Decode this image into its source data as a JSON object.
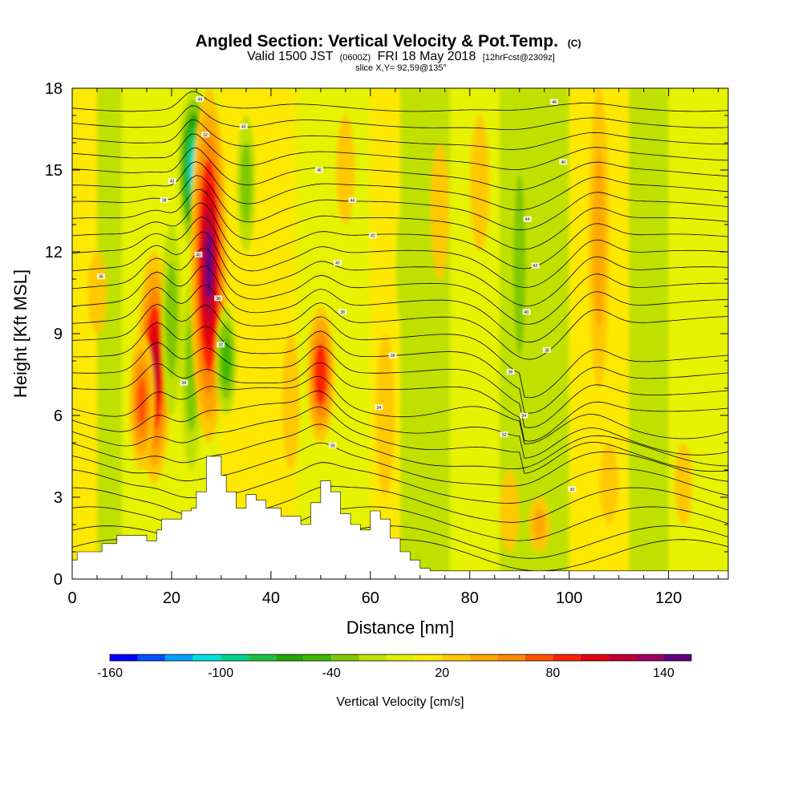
{
  "chart_data": {
    "type": "heatmap",
    "title": "Angled Section: Vertical Velocity & Pot.Temp.",
    "title_unit": "(C)",
    "subtitle": {
      "valid": "Valid 1500 JST",
      "utc": "(0600Z)",
      "date": "FRI 18 May 2018",
      "forecast": "[12hrFcst@2309z]"
    },
    "slice_label": "slice X,Y= 92,59@135°",
    "xlabel": "Distance [nm]",
    "ylabel": "Height [Kft MSL]",
    "xlim": [
      0,
      132
    ],
    "ylim": [
      0,
      18
    ],
    "x_ticks": [
      0,
      20,
      40,
      60,
      80,
      100,
      120
    ],
    "y_ticks": [
      0,
      3,
      6,
      9,
      12,
      15,
      18
    ],
    "grid": false,
    "colorbar": {
      "label": "Vertical Velocity [cm/s]",
      "tick_values": [
        -160,
        -100,
        -40,
        20,
        80,
        140
      ],
      "bins": [
        -160,
        -145,
        -130,
        -115,
        -100,
        -85,
        -70,
        -55,
        -40,
        -25,
        -10,
        5,
        20,
        35,
        50,
        65,
        80,
        95,
        110,
        125,
        140,
        155
      ],
      "colors": [
        "#0000ff",
        "#0050ff",
        "#00a0ff",
        "#00e0e0",
        "#00d090",
        "#20c040",
        "#20a800",
        "#40b800",
        "#80c800",
        "#c0e000",
        "#e0f000",
        "#ffe800",
        "#ffc800",
        "#ffa800",
        "#ff8800",
        "#ff5000",
        "#ff2000",
        "#e00010",
        "#c00030",
        "#a00060",
        "#600080"
      ]
    },
    "velocity_features": [
      {
        "x": 5,
        "zmin": 9,
        "zmax": 12,
        "value": 25
      },
      {
        "x": 16.5,
        "zmin": 3.5,
        "zmax": 12,
        "value": 120
      },
      {
        "x": 14,
        "zmin": 4,
        "zmax": 9,
        "value": 70
      },
      {
        "x": 20,
        "zmin": 6,
        "zmax": 13,
        "value": -40
      },
      {
        "x": 24.5,
        "zmin": 12,
        "zmax": 18,
        "value": -110
      },
      {
        "x": 24,
        "zmin": 4,
        "zmax": 11,
        "value": -40
      },
      {
        "x": 27.5,
        "zmin": 5,
        "zmax": 18,
        "value": 140
      },
      {
        "x": 31,
        "zmin": 6,
        "zmax": 10,
        "value": -45
      },
      {
        "x": 35,
        "zmin": 12,
        "zmax": 17,
        "value": -30
      },
      {
        "x": 44,
        "zmin": 4,
        "zmax": 9,
        "value": 20
      },
      {
        "x": 50,
        "zmin": 5,
        "zmax": 10,
        "value": 85
      },
      {
        "x": 55,
        "zmin": 13,
        "zmax": 17,
        "value": 25
      },
      {
        "x": 63,
        "zmin": 3,
        "zmax": 9,
        "value": 25
      },
      {
        "x": 67,
        "zmin": 9,
        "zmax": 14,
        "value": -25
      },
      {
        "x": 74,
        "zmin": 11,
        "zmax": 16,
        "value": 25
      },
      {
        "x": 82,
        "zmin": 12,
        "zmax": 17,
        "value": 30
      },
      {
        "x": 90,
        "zmin": 6,
        "zmax": 17,
        "value": -35
      },
      {
        "x": 88,
        "zmin": 1,
        "zmax": 4,
        "value": 30
      },
      {
        "x": 94,
        "zmin": 1,
        "zmax": 3,
        "value": 40
      },
      {
        "x": 106,
        "zmin": 7,
        "zmax": 18,
        "value": 40
      },
      {
        "x": 108,
        "zmin": 2,
        "zmax": 5,
        "value": 25
      },
      {
        "x": 123,
        "zmin": 2,
        "zmax": 5,
        "value": 20
      }
    ],
    "terrain": {
      "x": [
        0,
        1,
        6,
        9,
        13,
        15,
        17,
        18,
        20,
        22,
        24,
        25,
        27,
        28,
        30,
        31,
        33,
        35,
        37,
        39,
        42,
        46,
        48,
        50,
        52,
        54,
        56,
        58,
        60,
        62,
        64,
        66,
        68,
        70,
        72,
        132
      ],
      "z": [
        0.7,
        1.0,
        1.3,
        1.6,
        1.6,
        1.4,
        1.8,
        2.2,
        2.2,
        2.5,
        2.6,
        3.2,
        4.5,
        4.5,
        3.8,
        3.2,
        2.6,
        3.1,
        2.9,
        2.6,
        2.3,
        2.0,
        2.8,
        3.6,
        3.2,
        2.4,
        2.0,
        1.8,
        2.5,
        2.2,
        1.5,
        1.0,
        0.7,
        0.4,
        0.3,
        0.3
      ]
    },
    "theta_contours": {
      "base_levels": [
        0.9,
        1.4,
        2.1,
        2.8,
        3.5,
        4.1,
        4.7,
        5.3,
        5.9,
        6.5,
        7.1,
        7.7,
        8.3,
        8.9,
        9.5,
        10.1,
        10.7,
        11.3,
        11.9,
        12.5,
        13.1,
        13.7,
        14.3,
        14.9,
        15.5,
        16.1,
        16.7,
        17.3
      ]
    },
    "contour_labels": [
      {
        "x": 25.7,
        "z": 17.6,
        "text": "44"
      },
      {
        "x": 34.5,
        "z": 16.6,
        "text": "42"
      },
      {
        "x": 26.8,
        "z": 16.3,
        "text": "32"
      },
      {
        "x": 20.1,
        "z": 14.6,
        "text": "40"
      },
      {
        "x": 18.5,
        "z": 13.9,
        "text": "38"
      },
      {
        "x": 25.4,
        "z": 11.9,
        "text": "40"
      },
      {
        "x": 29.4,
        "z": 10.3,
        "text": "38"
      },
      {
        "x": 29.9,
        "z": 8.6,
        "text": "32"
      },
      {
        "x": 22.5,
        "z": 7.2,
        "text": "34"
      },
      {
        "x": 49.7,
        "z": 15.0,
        "text": "46"
      },
      {
        "x": 56.4,
        "z": 13.9,
        "text": "44"
      },
      {
        "x": 60.5,
        "z": 12.6,
        "text": "42"
      },
      {
        "x": 53.4,
        "z": 11.6,
        "text": "40"
      },
      {
        "x": 5.8,
        "z": 11.1,
        "text": "36"
      },
      {
        "x": 54.4,
        "z": 9.8,
        "text": "38"
      },
      {
        "x": 64.5,
        "z": 8.2,
        "text": "36"
      },
      {
        "x": 61.7,
        "z": 6.3,
        "text": "34"
      },
      {
        "x": 52.4,
        "z": 4.9,
        "text": "30"
      },
      {
        "x": 97.0,
        "z": 17.5,
        "text": "46"
      },
      {
        "x": 98.8,
        "z": 15.3,
        "text": "46"
      },
      {
        "x": 91.6,
        "z": 13.2,
        "text": "44"
      },
      {
        "x": 93.2,
        "z": 11.5,
        "text": "42"
      },
      {
        "x": 91.4,
        "z": 9.8,
        "text": "40"
      },
      {
        "x": 95.5,
        "z": 8.4,
        "text": "38"
      },
      {
        "x": 88.2,
        "z": 7.6,
        "text": "36"
      },
      {
        "x": 90.9,
        "z": 6.0,
        "text": "34"
      },
      {
        "x": 86.9,
        "z": 5.3,
        "text": "32"
      },
      {
        "x": 100.6,
        "z": 3.3,
        "text": "30"
      }
    ]
  }
}
